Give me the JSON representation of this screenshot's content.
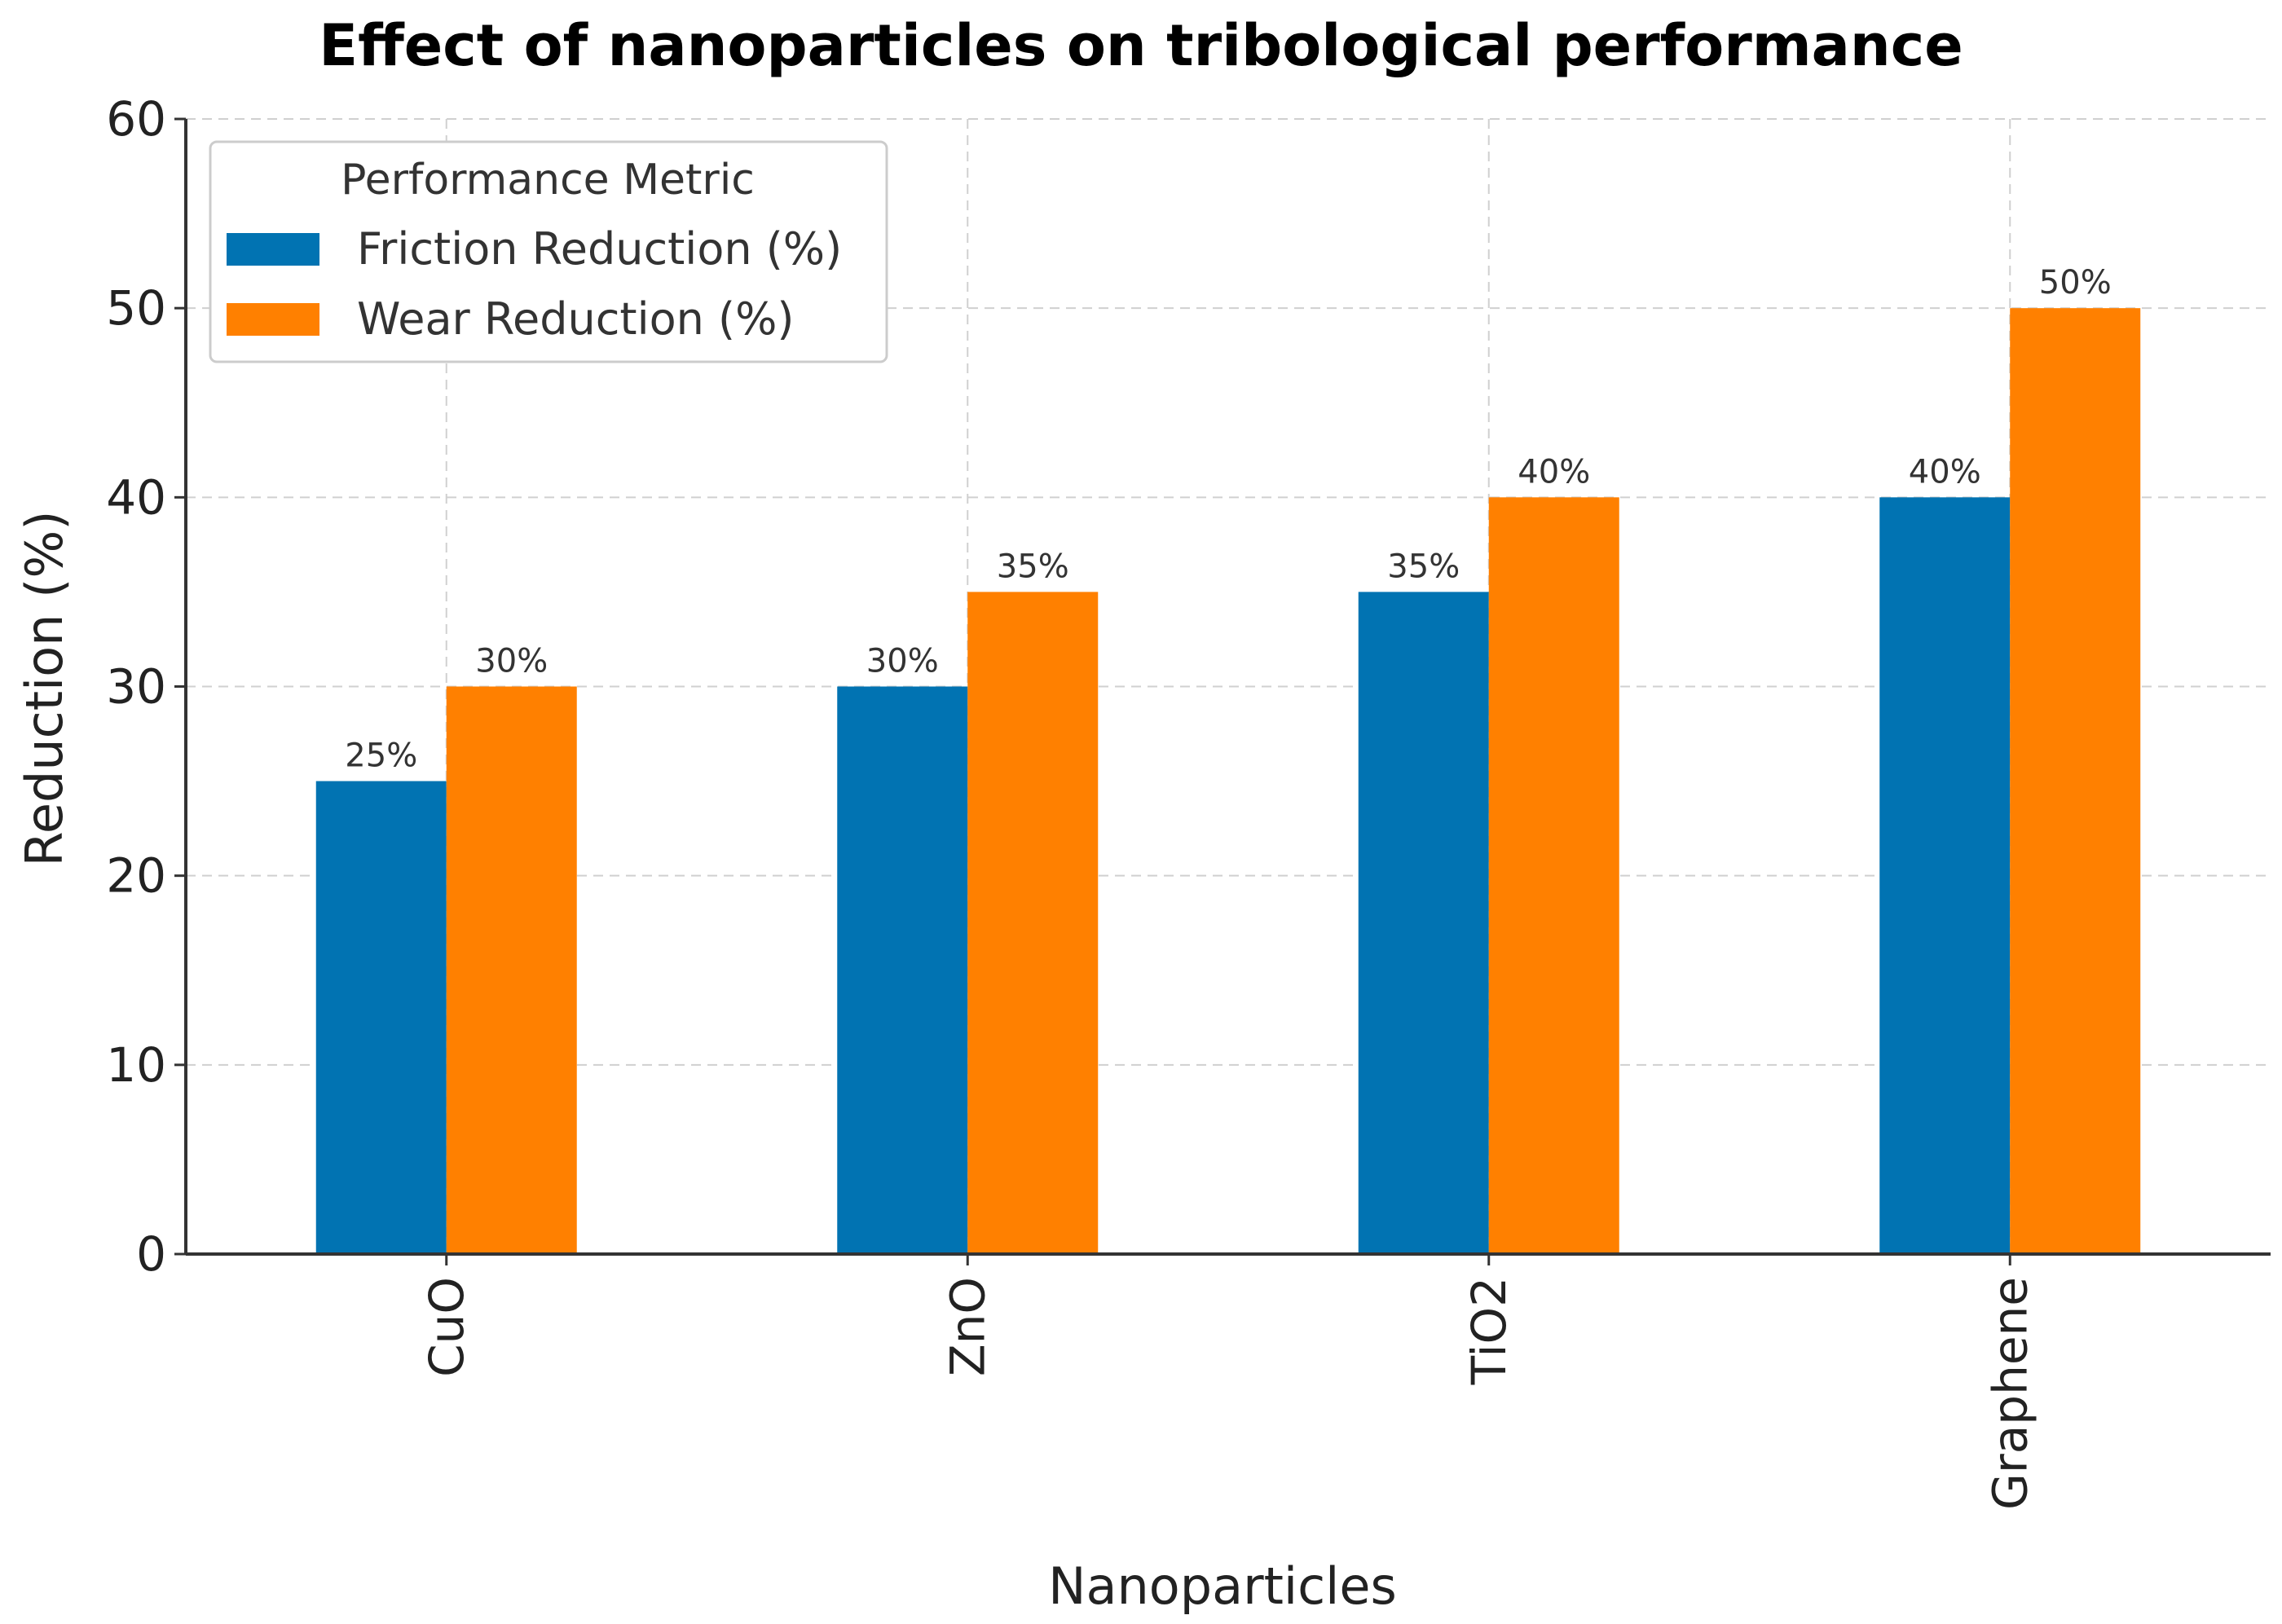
{
  "chart_data": {
    "type": "bar",
    "title": "Effect of nanoparticles on tribological performance",
    "xlabel": "Nanoparticles",
    "ylabel": "Reduction (%)",
    "categories": [
      "CuO",
      "ZnO",
      "TiO2",
      "Graphene"
    ],
    "series": [
      {
        "name": "Friction Reduction (%)",
        "color": "#0173B2",
        "values": [
          25,
          30,
          35,
          40
        ],
        "labels": [
          "25%",
          "30%",
          "35%",
          "40%"
        ]
      },
      {
        "name": "Wear Reduction (%)",
        "color": "#FF8000",
        "values": [
          30,
          35,
          40,
          50
        ],
        "labels": [
          "30%",
          "35%",
          "40%",
          "50%"
        ]
      }
    ],
    "ylim": [
      0,
      60
    ],
    "yticks": [
      0,
      10,
      20,
      30,
      40,
      50,
      60
    ],
    "grid": true,
    "legend": {
      "title": "Performance Metric",
      "position": "top-left"
    }
  }
}
